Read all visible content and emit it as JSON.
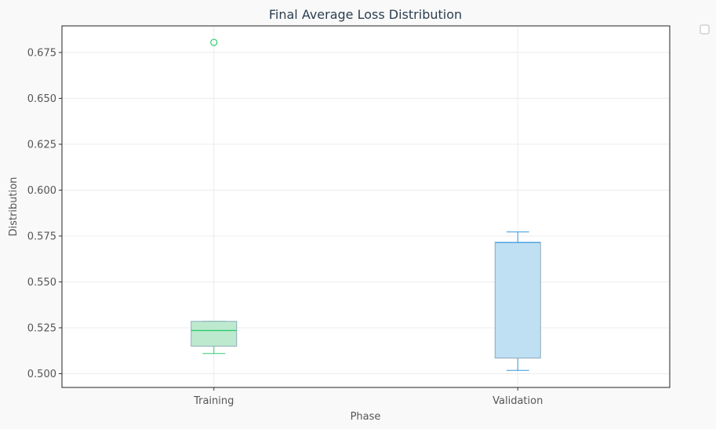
{
  "chart_data": {
    "type": "box",
    "title": "Final Average Loss Distribution",
    "xlabel": "Phase",
    "ylabel": "Distribution",
    "categories": [
      "Training",
      "Validation"
    ],
    "ylim": [
      0.4925,
      0.6895
    ],
    "yticks": [
      "0.500",
      "0.525",
      "0.550",
      "0.575",
      "0.600",
      "0.625",
      "0.650",
      "0.675"
    ],
    "grid": true,
    "legend": "top-right (empty)",
    "boxes": [
      {
        "category": "Training",
        "whisker_low": 0.511,
        "q1": 0.515,
        "median": 0.5235,
        "q3": 0.5285,
        "whisker_high": 0.5285,
        "outliers": [
          0.6805
        ],
        "fill": "#bdeacf",
        "edge": "#2ecc71"
      },
      {
        "category": "Validation",
        "whisker_low": 0.5018,
        "q1": 0.5085,
        "median": 0.5715,
        "q3": 0.5715,
        "whisker_high": 0.5772,
        "outliers": [],
        "fill": "#bfdff3",
        "edge": "#3498db"
      }
    ]
  }
}
